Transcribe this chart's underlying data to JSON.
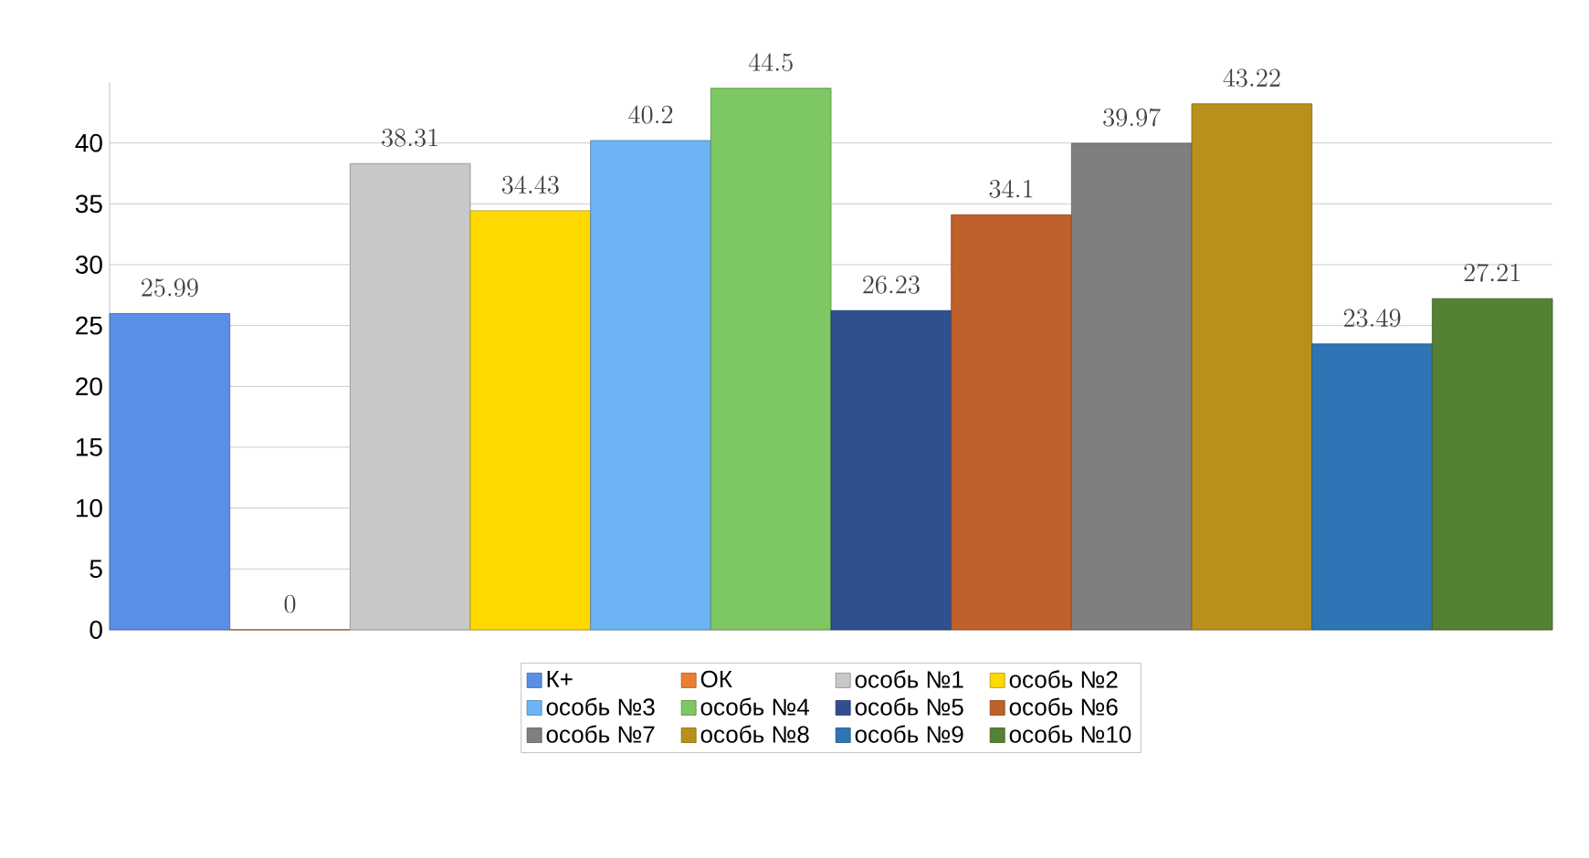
{
  "chart_data": {
    "type": "bar",
    "categories": [
      null,
      null,
      null,
      null,
      null,
      null,
      null,
      null,
      null,
      null,
      null,
      null
    ],
    "ylim": [
      0,
      45
    ],
    "yticks": [
      0,
      5,
      10,
      15,
      20,
      25,
      30,
      35,
      40
    ],
    "grid": "y",
    "legend": "bottom",
    "data_labels": true,
    "series": [
      {
        "name": "К+",
        "color": "#5b8ee6",
        "values": [
          25.99,
          null,
          null,
          null,
          null,
          null,
          null,
          null,
          null,
          null,
          null,
          null
        ]
      },
      {
        "name": "ОК",
        "color": "#ed7d31",
        "values": [
          null,
          0,
          null,
          null,
          null,
          null,
          null,
          null,
          null,
          null,
          null,
          null
        ]
      },
      {
        "name": "особь №1",
        "color": "#c8c8c8",
        "values": [
          null,
          null,
          38.31,
          null,
          null,
          null,
          null,
          null,
          null,
          null,
          null,
          null
        ]
      },
      {
        "name": "особь №2",
        "color": "#ffd800",
        "values": [
          null,
          null,
          null,
          34.43,
          null,
          null,
          null,
          null,
          null,
          null,
          null,
          null
        ]
      },
      {
        "name": "особь №3",
        "color": "#6cb4f5",
        "values": [
          null,
          null,
          null,
          null,
          40.2,
          null,
          null,
          null,
          null,
          null,
          null,
          null
        ]
      },
      {
        "name": "особь №4",
        "color": "#7dc862",
        "values": [
          null,
          null,
          null,
          null,
          null,
          44.5,
          null,
          null,
          null,
          null,
          null,
          null
        ]
      },
      {
        "name": "особь №5",
        "color": "#2f4f8f",
        "values": [
          null,
          null,
          null,
          null,
          null,
          null,
          26.23,
          null,
          null,
          null,
          null,
          null
        ]
      },
      {
        "name": "особь №6",
        "color": "#c0602a",
        "values": [
          null,
          null,
          null,
          null,
          null,
          null,
          null,
          34.1,
          null,
          null,
          null,
          null
        ]
      },
      {
        "name": "особь №7",
        "color": "#7f7f7f",
        "values": [
          null,
          null,
          null,
          null,
          null,
          null,
          null,
          null,
          39.97,
          null,
          null,
          null
        ]
      },
      {
        "name": "особь №8",
        "color": "#b8901a",
        "values": [
          null,
          null,
          null,
          null,
          null,
          null,
          null,
          null,
          null,
          43.22,
          null,
          null
        ]
      },
      {
        "name": "особь №9",
        "color": "#2e75b6",
        "values": [
          null,
          null,
          null,
          null,
          null,
          null,
          null,
          null,
          null,
          null,
          23.49,
          null
        ]
      },
      {
        "name": "особь №10",
        "color": "#548235",
        "values": [
          null,
          null,
          null,
          null,
          null,
          null,
          null,
          null,
          null,
          null,
          null,
          27.21
        ]
      }
    ]
  }
}
